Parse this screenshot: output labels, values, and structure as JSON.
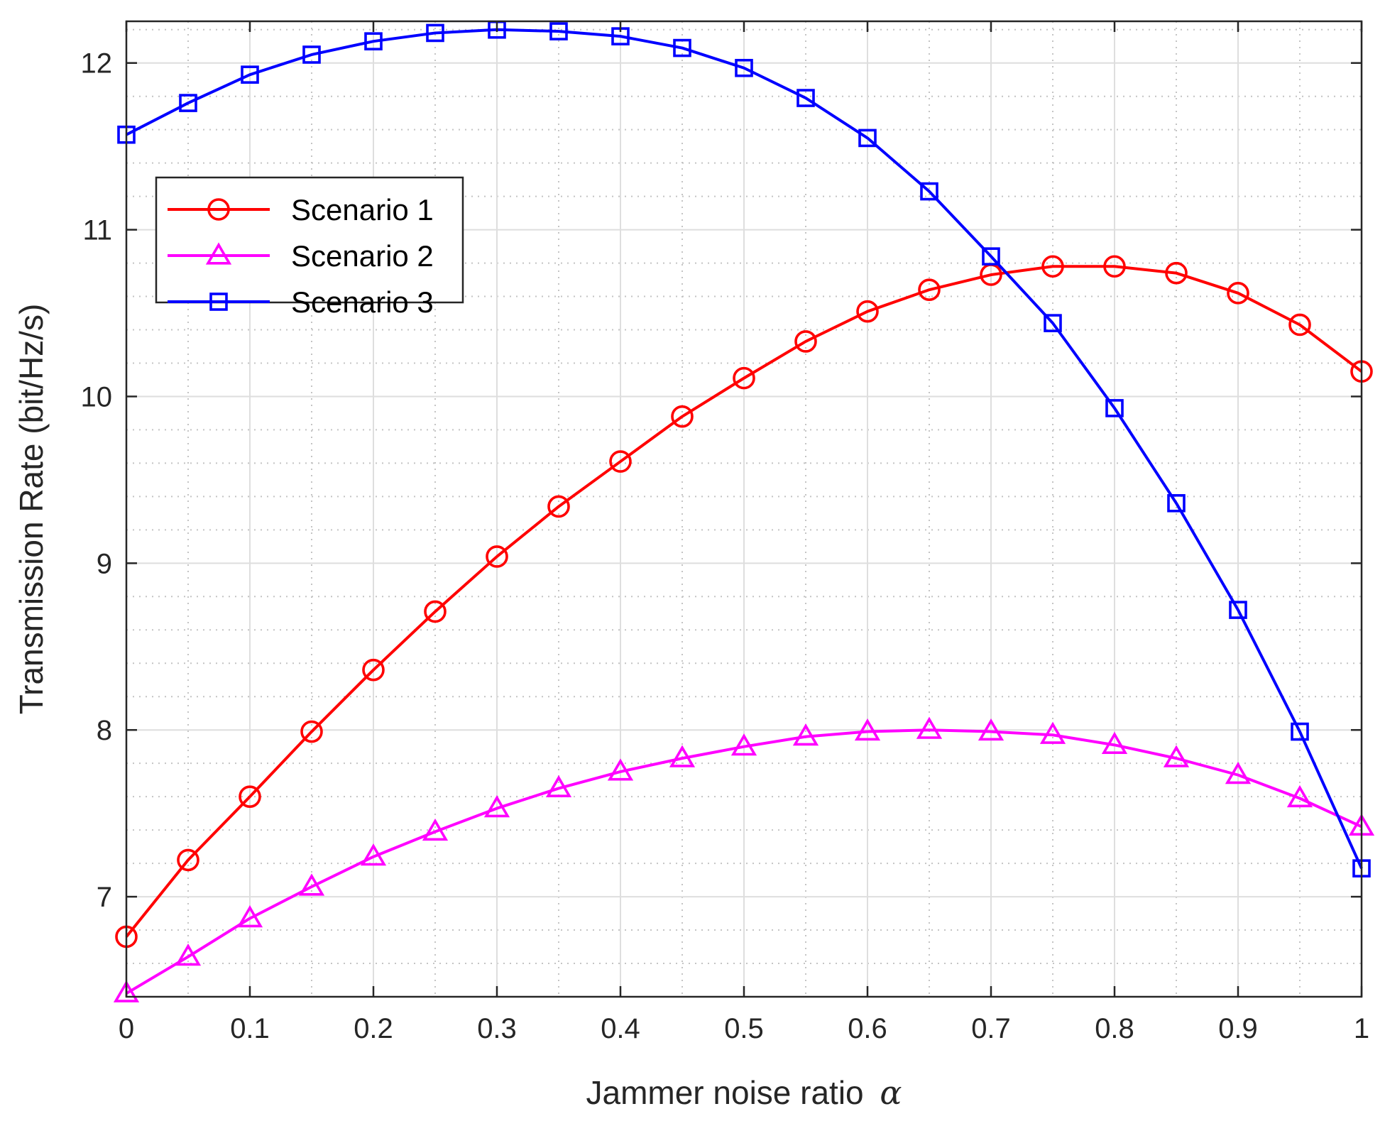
{
  "chart_data": {
    "type": "line",
    "title": "",
    "xlabel": "Jammer noise ratio",
    "xlabel_symbol": "α",
    "ylabel": "Transmission Rate (bit/Hz/s)",
    "xlim": [
      0,
      1
    ],
    "ylim": [
      6.4,
      12.25
    ],
    "x_ticks": [
      "0",
      "0.1",
      "0.2",
      "0.3",
      "0.4",
      "0.5",
      "0.6",
      "0.7",
      "0.8",
      "0.9",
      "1"
    ],
    "x_tick_values": [
      0,
      0.1,
      0.2,
      0.3,
      0.4,
      0.5,
      0.6,
      0.7,
      0.8,
      0.9,
      1
    ],
    "y_ticks": [
      "7",
      "8",
      "9",
      "10",
      "11",
      "12"
    ],
    "y_tick_values": [
      7,
      8,
      9,
      10,
      11,
      12
    ],
    "y_minor_step": 0.2,
    "x_minor_step": 0.05,
    "grid": true,
    "minor_grid": true,
    "legend_position": "upper-left",
    "x": [
      0,
      0.05,
      0.1,
      0.15,
      0.2,
      0.25,
      0.3,
      0.35,
      0.4,
      0.45,
      0.5,
      0.55,
      0.6,
      0.65,
      0.7,
      0.75,
      0.8,
      0.85,
      0.9,
      0.95,
      1
    ],
    "series": [
      {
        "name": "Scenario 1",
        "color": "#ff0000",
        "marker": "circle",
        "values": [
          6.76,
          7.22,
          7.6,
          7.99,
          8.36,
          8.71,
          9.04,
          9.34,
          9.61,
          9.88,
          10.11,
          10.33,
          10.51,
          10.64,
          10.73,
          10.78,
          10.78,
          10.74,
          10.62,
          10.43,
          10.15
        ]
      },
      {
        "name": "Scenario 2",
        "color": "#ff00ff",
        "marker": "triangle",
        "values": [
          6.42,
          6.64,
          6.87,
          7.06,
          7.24,
          7.39,
          7.53,
          7.65,
          7.75,
          7.83,
          7.9,
          7.96,
          7.99,
          8.0,
          7.99,
          7.97,
          7.91,
          7.83,
          7.73,
          7.59,
          7.42
        ]
      },
      {
        "name": "Scenario 3",
        "color": "#0000ff",
        "marker": "square",
        "values": [
          11.57,
          11.76,
          11.93,
          12.05,
          12.13,
          12.18,
          12.2,
          12.19,
          12.16,
          12.09,
          11.97,
          11.79,
          11.55,
          11.23,
          10.84,
          10.44,
          9.93,
          9.36,
          8.72,
          7.99,
          7.17
        ]
      }
    ]
  }
}
